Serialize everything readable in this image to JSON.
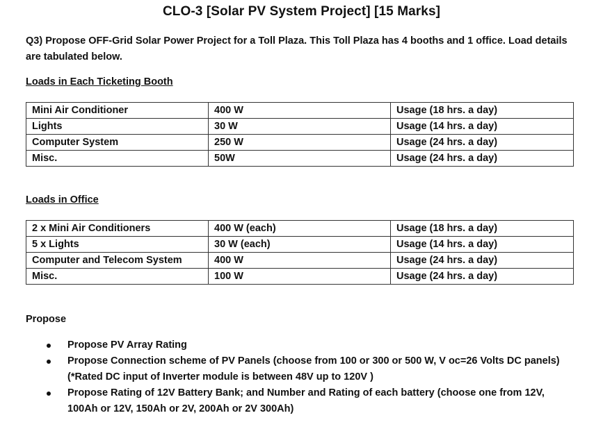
{
  "title": "CLO-3 [Solar PV System Project] [15 Marks]",
  "question": "Q3) Propose OFF-Grid Solar Power Project for a Toll Plaza. This Toll Plaza has 4 booths and 1 office. Load details are tabulated below.",
  "booth": {
    "heading": "Loads in Each Ticketing Booth",
    "rows": [
      [
        "Mini Air Conditioner",
        "400 W",
        "Usage (18 hrs. a day)"
      ],
      [
        "Lights",
        "30 W",
        "Usage (14 hrs. a day)"
      ],
      [
        "Computer System",
        "250 W",
        "Usage (24 hrs. a day)"
      ],
      [
        "Misc.",
        "50W",
        "Usage (24 hrs. a day)"
      ]
    ]
  },
  "office": {
    "heading": "Loads in Office",
    "rows": [
      [
        "2 x Mini Air Conditioners",
        "400 W (each)",
        "Usage (18 hrs. a day)"
      ],
      [
        "5 x Lights",
        "30 W (each)",
        "Usage (14 hrs. a day)"
      ],
      [
        "Computer and Telecom System",
        "400 W",
        "Usage (24 hrs. a day)"
      ],
      [
        "Misc.",
        "100 W",
        "Usage (24 hrs. a day)"
      ]
    ]
  },
  "propose": {
    "heading": "Propose",
    "items": [
      "Propose PV Array Rating",
      "Propose Connection scheme of PV Panels (choose from 100 or 300 or 500 W, V oc=26 Volts DC panels) (*Rated DC input of Inverter module is between 48V up to 120V )",
      "Propose Rating of 12V Battery Bank; and Number and Rating of each battery (choose one from 12V, 100Ah or 12V, 150Ah or 2V, 200Ah or 2V 300Ah)"
    ]
  }
}
